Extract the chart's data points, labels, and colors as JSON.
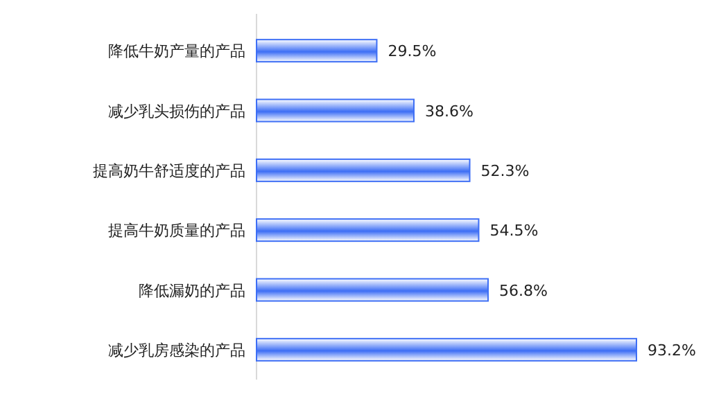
{
  "chart_data": {
    "type": "bar",
    "orientation": "horizontal",
    "categories": [
      "降低牛奶产量的产品",
      "减少乳头损伤的产品",
      "提高奶牛舒适度的产品",
      "提高牛奶质量的产品",
      "降低漏奶的产品",
      "减少乳房感染的产品"
    ],
    "values": [
      29.5,
      38.6,
      52.3,
      54.5,
      56.8,
      93.2
    ],
    "value_labels": [
      "29.5%",
      "38.6%",
      "52.3%",
      "54.5%",
      "56.8%",
      "93.2%"
    ],
    "color": "#3d6ef5"
  }
}
